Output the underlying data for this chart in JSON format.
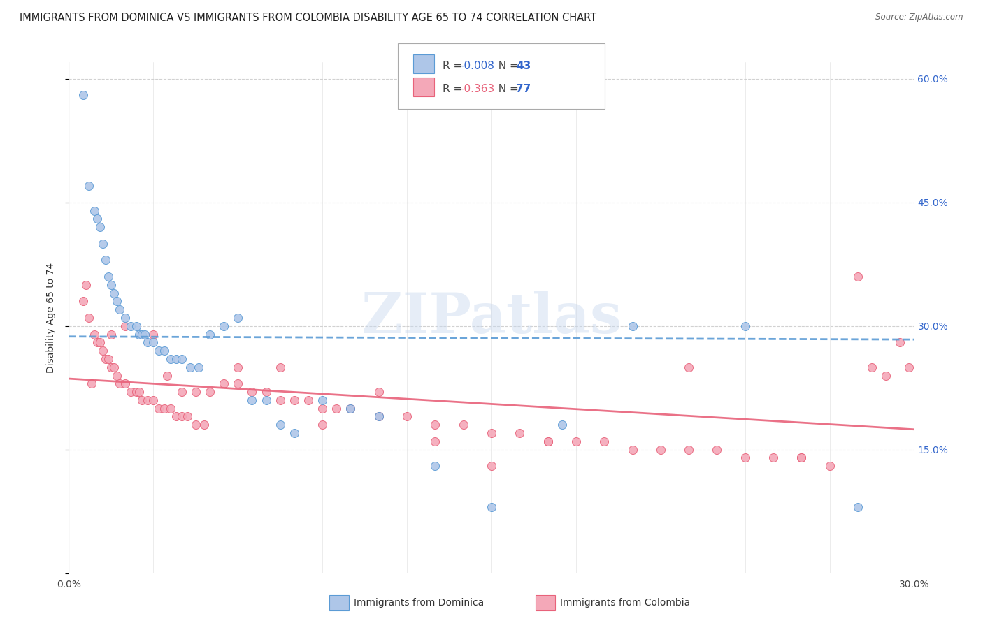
{
  "title": "IMMIGRANTS FROM DOMINICA VS IMMIGRANTS FROM COLOMBIA DISABILITY AGE 65 TO 74 CORRELATION CHART",
  "source": "Source: ZipAtlas.com",
  "ylabel": "Disability Age 65 to 74",
  "xlim": [
    0.0,
    0.3
  ],
  "ylim": [
    0.0,
    0.62
  ],
  "yticks": [
    0.0,
    0.15,
    0.3,
    0.45,
    0.6
  ],
  "ytick_labels": [
    "",
    "15.0%",
    "30.0%",
    "45.0%",
    "60.0%"
  ],
  "xtick_labels": [
    "0.0%",
    "30.0%"
  ],
  "dominica_R": -0.008,
  "dominica_N": 43,
  "colombia_R": -0.363,
  "colombia_N": 77,
  "dominica_color": "#aec6e8",
  "colombia_color": "#f4a8b8",
  "dominica_edge_color": "#5b9bd5",
  "colombia_edge_color": "#e8627a",
  "dominica_line_color": "#5b9bd5",
  "colombia_line_color": "#e8627a",
  "watermark": "ZIPatlas",
  "background_color": "#ffffff",
  "grid_color": "#cccccc",
  "title_fontsize": 10.5,
  "axis_label_fontsize": 10,
  "tick_fontsize": 10,
  "dominica_x": [
    0.005,
    0.007,
    0.009,
    0.01,
    0.011,
    0.012,
    0.013,
    0.014,
    0.015,
    0.016,
    0.017,
    0.018,
    0.02,
    0.022,
    0.024,
    0.025,
    0.026,
    0.027,
    0.028,
    0.03,
    0.032,
    0.034,
    0.036,
    0.038,
    0.04,
    0.043,
    0.046,
    0.05,
    0.055,
    0.06,
    0.065,
    0.07,
    0.075,
    0.08,
    0.09,
    0.1,
    0.11,
    0.13,
    0.15,
    0.175,
    0.2,
    0.24,
    0.28
  ],
  "dominica_y": [
    0.58,
    0.47,
    0.44,
    0.43,
    0.42,
    0.4,
    0.38,
    0.36,
    0.35,
    0.34,
    0.33,
    0.32,
    0.31,
    0.3,
    0.3,
    0.29,
    0.29,
    0.29,
    0.28,
    0.28,
    0.27,
    0.27,
    0.26,
    0.26,
    0.26,
    0.25,
    0.25,
    0.29,
    0.3,
    0.31,
    0.21,
    0.21,
    0.18,
    0.17,
    0.21,
    0.2,
    0.19,
    0.13,
    0.08,
    0.18,
    0.3,
    0.3,
    0.08
  ],
  "colombia_x": [
    0.005,
    0.007,
    0.009,
    0.01,
    0.011,
    0.012,
    0.013,
    0.014,
    0.015,
    0.016,
    0.017,
    0.018,
    0.02,
    0.022,
    0.024,
    0.026,
    0.028,
    0.03,
    0.032,
    0.034,
    0.036,
    0.038,
    0.04,
    0.042,
    0.045,
    0.048,
    0.05,
    0.055,
    0.06,
    0.065,
    0.07,
    0.075,
    0.08,
    0.085,
    0.09,
    0.095,
    0.1,
    0.11,
    0.12,
    0.13,
    0.14,
    0.15,
    0.16,
    0.17,
    0.18,
    0.19,
    0.2,
    0.21,
    0.22,
    0.23,
    0.24,
    0.25,
    0.26,
    0.27,
    0.28,
    0.285,
    0.29,
    0.295,
    0.298,
    0.006,
    0.008,
    0.015,
    0.02,
    0.025,
    0.03,
    0.035,
    0.04,
    0.045,
    0.06,
    0.075,
    0.09,
    0.11,
    0.13,
    0.15,
    0.17,
    0.22,
    0.26
  ],
  "colombia_y": [
    0.33,
    0.31,
    0.29,
    0.28,
    0.28,
    0.27,
    0.26,
    0.26,
    0.25,
    0.25,
    0.24,
    0.23,
    0.23,
    0.22,
    0.22,
    0.21,
    0.21,
    0.21,
    0.2,
    0.2,
    0.2,
    0.19,
    0.19,
    0.19,
    0.18,
    0.18,
    0.22,
    0.23,
    0.23,
    0.22,
    0.22,
    0.21,
    0.21,
    0.21,
    0.2,
    0.2,
    0.2,
    0.19,
    0.19,
    0.18,
    0.18,
    0.17,
    0.17,
    0.16,
    0.16,
    0.16,
    0.15,
    0.15,
    0.15,
    0.15,
    0.14,
    0.14,
    0.14,
    0.13,
    0.36,
    0.25,
    0.24,
    0.28,
    0.25,
    0.35,
    0.23,
    0.29,
    0.3,
    0.22,
    0.29,
    0.24,
    0.22,
    0.22,
    0.25,
    0.25,
    0.18,
    0.22,
    0.16,
    0.13,
    0.16,
    0.25,
    0.14
  ]
}
